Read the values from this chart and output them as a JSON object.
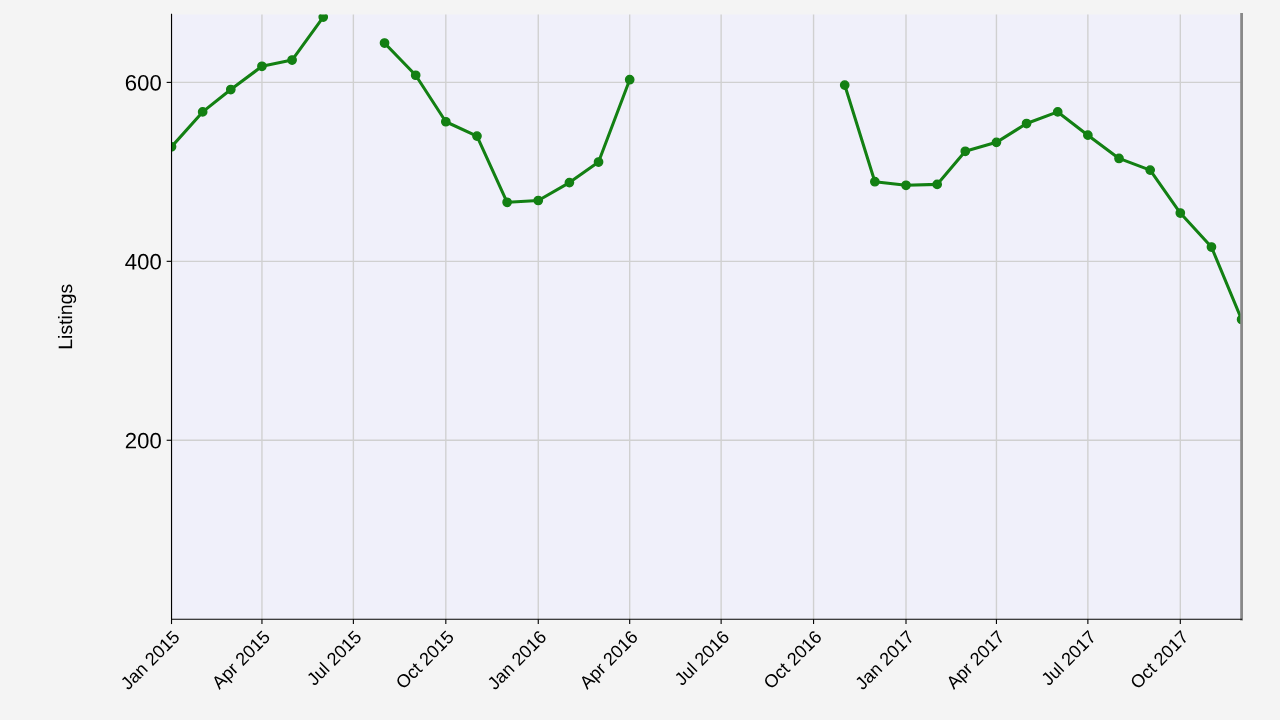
{
  "chart_data": {
    "type": "line",
    "ylabel": "Listings",
    "x": [
      "2015-01",
      "2015-02",
      "2015-03",
      "2015-04",
      "2015-05",
      "2015-06",
      "2015-07",
      "2015-08",
      "2015-09",
      "2015-10",
      "2015-11",
      "2015-12",
      "2016-01",
      "2016-02",
      "2016-03",
      "2016-04",
      "2016-05",
      "2016-06",
      "2016-07",
      "2016-08",
      "2016-09",
      "2016-10",
      "2016-11",
      "2016-12",
      "2017-01",
      "2017-02",
      "2017-03",
      "2017-04",
      "2017-05",
      "2017-06",
      "2017-07",
      "2017-08",
      "2017-09",
      "2017-10",
      "2017-11",
      "2017-12"
    ],
    "series": [
      {
        "color": "#138013",
        "values": [
          528,
          567,
          592,
          618,
          625,
          673,
          null,
          644,
          608,
          556,
          540,
          466,
          468,
          488,
          511,
          603,
          null,
          null,
          null,
          null,
          null,
          null,
          597,
          489,
          485,
          486,
          523,
          533,
          554,
          567,
          541,
          515,
          502,
          454,
          416,
          335
        ]
      }
    ],
    "xlim": [
      "2015-01",
      "2017-12"
    ],
    "ylim": [
      0,
      676
    ],
    "yticks": [
      200,
      400,
      600
    ],
    "xticks": [
      {
        "value": "2015-01",
        "label": "Jan 2015"
      },
      {
        "value": "2015-04",
        "label": "Apr 2015"
      },
      {
        "value": "2015-07",
        "label": "Jul 2015"
      },
      {
        "value": "2015-10",
        "label": "Oct 2015"
      },
      {
        "value": "2016-01",
        "label": "Jan 2016"
      },
      {
        "value": "2016-04",
        "label": "Apr 2016"
      },
      {
        "value": "2016-07",
        "label": "Jul 2016"
      },
      {
        "value": "2016-10",
        "label": "Oct 2016"
      },
      {
        "value": "2017-01",
        "label": "Jan 2017"
      },
      {
        "value": "2017-04",
        "label": "Apr 2017"
      },
      {
        "value": "2017-07",
        "label": "Jul 2017"
      },
      {
        "value": "2017-10",
        "label": "Oct 2017"
      }
    ],
    "grid": true,
    "marker": "circle",
    "line_style": "solid",
    "legend": false
  }
}
